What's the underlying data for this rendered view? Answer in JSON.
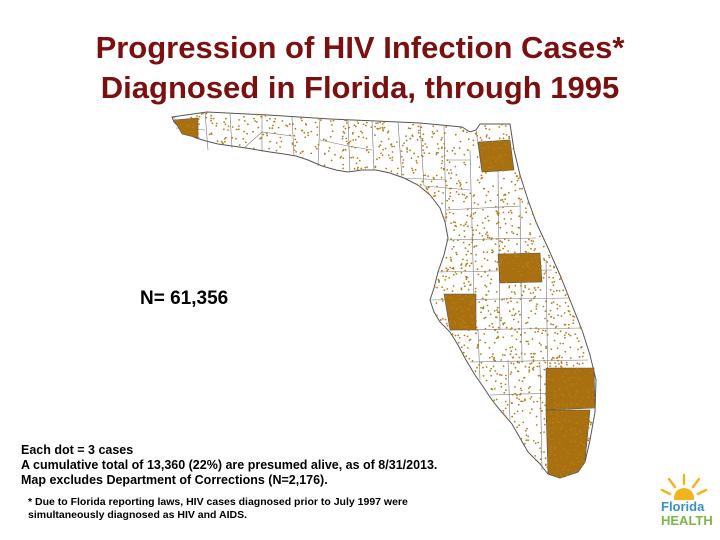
{
  "colors": {
    "title": "#7a1010",
    "dot": "#b57b1f",
    "dense_county": "#a8700f",
    "county_border": "#555555",
    "logo_sun": "#f2b31c",
    "logo_blue": "#3b8fc8",
    "logo_green": "#7ab648"
  },
  "title": {
    "line1": "Progression of HIV Infection Cases*",
    "line2": "Diagnosed in Florida, through 1995"
  },
  "map": {
    "count_label": "N= 61,356",
    "dot_density": 3
  },
  "notes": {
    "line1": "Each dot = 3 cases",
    "line2": "A cumulative total of 13,360 (22%) are presumed alive, as of 8/31/2013.",
    "line3": "Map excludes Department of Corrections (N=2,176)."
  },
  "footnote": "* Due to Florida reporting laws, HIV cases diagnosed prior to July 1997 were simultaneously diagnosed as HIV and AIDS.",
  "logo": {
    "word1": "Florida",
    "word2": "HEALTH",
    "icon": "sun-icon"
  }
}
